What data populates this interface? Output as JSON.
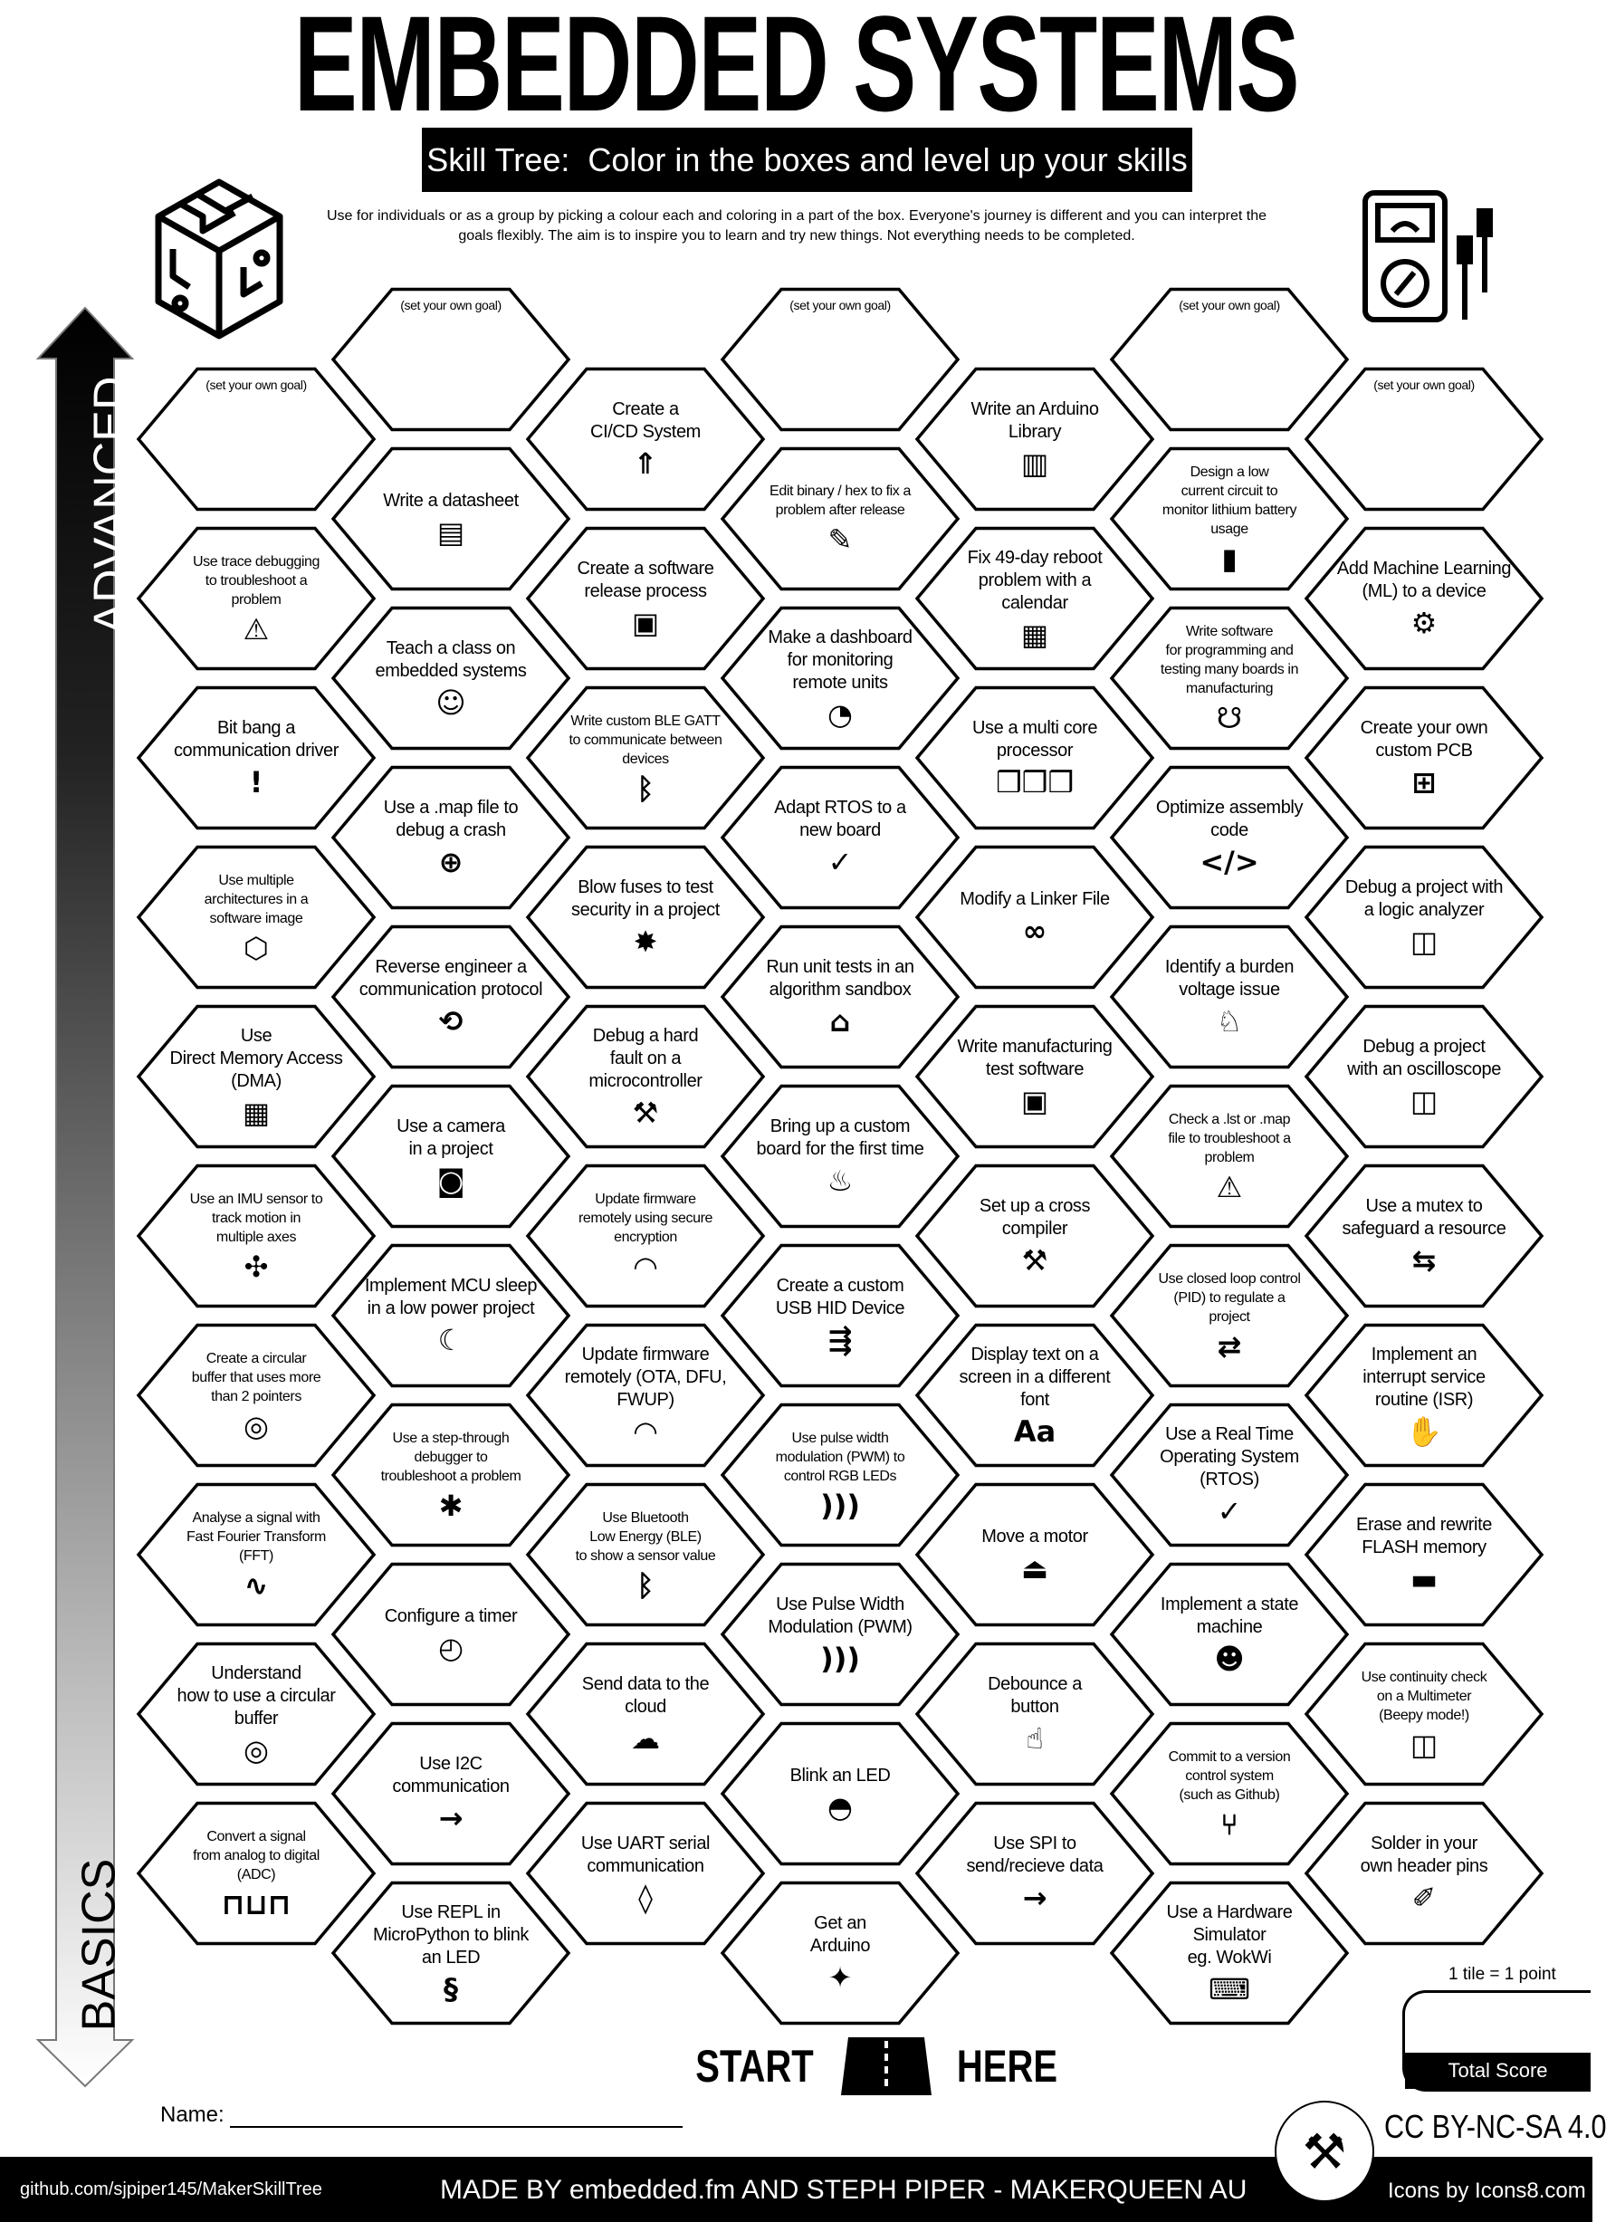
{
  "header": {
    "title": "EMBEDDED SYSTEMS",
    "subtitle": "Skill Tree:  Color in the boxes and level up your skills",
    "intro": "Use for individuals or as a group by picking a colour each and coloring in a part of the box.  Everyone's journey is different and you can interpret the goals flexibly.  The aim is to inspire you to learn and try new things. Not everything needs to be completed."
  },
  "axis": {
    "top_label": "ADVANCED",
    "bottom_label": "BASICS"
  },
  "tree": {
    "columns": [
      {
        "tiles": [
          {
            "label": "(set your own goal)",
            "goal": true
          },
          {
            "label": "Use trace debugging\nto troubleshoot a\nproblem",
            "icon": "monitor-alert-icon"
          },
          {
            "label": "Bit bang a\ncommunication driver",
            "icon": "exclamation-icon"
          },
          {
            "label": "Use multiple\narchitectures in a\nsoftware image",
            "icon": "cube-network-icon"
          },
          {
            "label": "Use\nDirect Memory Access\n(DMA)",
            "icon": "chip-icon"
          },
          {
            "label": "Use an IMU sensor to\ntrack motion in\nmultiple axes",
            "icon": "3d-axes-icon"
          },
          {
            "label": "Create a circular\nbuffer that uses more\nthan 2 pointers",
            "icon": "ring-buffer-icon"
          },
          {
            "label": "Analyse a signal with\nFast Fourier Transform\n(FFT)",
            "icon": "signal-search-icon"
          },
          {
            "label": "Understand\nhow to use a circular\nbuffer",
            "icon": "ring-buffer-icon"
          },
          {
            "label": "Convert a signal\nfrom analog to digital\n(ADC)",
            "icon": "square-wave-icon"
          }
        ]
      },
      {
        "tiles": [
          {
            "label": "(set your own goal)",
            "goal": true
          },
          {
            "label": "Write a datasheet",
            "icon": "document-icon"
          },
          {
            "label": "Teach a class on\nembedded systems",
            "icon": "teacher-icon"
          },
          {
            "label": "Use a .map file to\ndebug a crash",
            "icon": "globe-icon"
          },
          {
            "label": "Reverse engineer a\ncommunication protocol",
            "icon": "reverse-gear-icon"
          },
          {
            "label": "Use a camera\nin a project",
            "icon": "camera-icon"
          },
          {
            "label": "Implement MCU sleep\nin a low power project",
            "icon": "sleep-icon"
          },
          {
            "label": "Use a step-through\ndebugger to\ntroubleshoot a problem",
            "icon": "monitor-bug-icon"
          },
          {
            "label": "Configure a timer",
            "icon": "stopwatch-icon"
          },
          {
            "label": "Use I2C\ncommunication",
            "icon": "bus-arrow-icon"
          },
          {
            "label": "Use REPL in\nMicroPython to blink\nan LED",
            "icon": "python-icon"
          }
        ]
      },
      {
        "tiles": [
          {
            "label": "Create a\nCI/CD System",
            "icon": "rocket-box-icon"
          },
          {
            "label": "Create a software\nrelease process",
            "icon": "disc-box-icon"
          },
          {
            "label": "Write custom BLE GATT\nto communicate between\ndevices",
            "icon": "bluetooth-icon"
          },
          {
            "label": "Blow fuses to test\nsecurity in a project",
            "icon": "explosion-icon"
          },
          {
            "label": "Debug a hard\nfault on a\nmicrocontroller",
            "icon": "tools-icon"
          },
          {
            "label": "Update firmware\nremotely using secure\nencryption",
            "icon": "wifi-lock-icon"
          },
          {
            "label": "Update firmware\nremotely (OTA, DFU,\nFWUP)",
            "icon": "wifi-icon"
          },
          {
            "label": "Use Bluetooth\nLow Energy (BLE)\nto show a sensor value",
            "icon": "bluetooth-icon"
          },
          {
            "label": "Send data to the\ncloud",
            "icon": "cloud-icon"
          },
          {
            "label": "Use UART serial\ncommunication",
            "icon": "drop-icon"
          }
        ]
      },
      {
        "tiles": [
          {
            "label": "(set your own goal)",
            "goal": true
          },
          {
            "label": "Edit binary / hex to fix a\nproblem after release",
            "icon": "pencil-icon"
          },
          {
            "label": "Make a dashboard\nfor monitoring\nremote units",
            "icon": "gauge-icon"
          },
          {
            "label": "Adapt RTOS to a\nnew board",
            "icon": "monitor-check-icon"
          },
          {
            "label": "Run unit tests in an\nalgorithm sandbox",
            "icon": "sandbox-icon"
          },
          {
            "label": "Bring up a custom\nboard for the first time",
            "icon": "birthday-cake-icon"
          },
          {
            "label": "Create a custom\nUSB HID Device",
            "icon": "usb-icon"
          },
          {
            "label": "Use pulse width\nmodulation (PWM) to\ncontrol RGB LEDs",
            "icon": "signal-waves-icon"
          },
          {
            "label": "Use Pulse Width\nModulation (PWM)",
            "icon": "signal-waves-icon"
          },
          {
            "label": "Blink an LED",
            "icon": "led-icon"
          },
          {
            "label": "Get an\nArduino",
            "icon": "party-popper-icon"
          }
        ]
      },
      {
        "tiles": [
          {
            "label": "Write an Arduino\nLibrary",
            "icon": "books-icon"
          },
          {
            "label": "Fix 49-day reboot\nproblem with a\ncalendar",
            "icon": "calendar-icon"
          },
          {
            "label": "Use a multi core\nprocessor",
            "icon": "cubes-icon"
          },
          {
            "label": "Modify a Linker File",
            "icon": "link-icon"
          },
          {
            "label": "Write manufacturing\ntest software",
            "icon": "disc-box-icon"
          },
          {
            "label": "Set up a cross\ncompiler",
            "icon": "tools-icon"
          },
          {
            "label": "Display text on a\nscreen in a different\nfont",
            "icon": "font-icon"
          },
          {
            "label": "Move a motor",
            "icon": "joystick-icon"
          },
          {
            "label": "Debounce a\nbutton",
            "icon": "finger-press-icon"
          },
          {
            "label": "Use SPI to\nsend/recieve data",
            "icon": "bus-arrow-icon"
          }
        ]
      },
      {
        "tiles": [
          {
            "label": "(set your own goal)",
            "goal": true
          },
          {
            "label": "Design a low\ncurrent circuit to\nmonitor lithium battery\nusage",
            "icon": "battery-icon"
          },
          {
            "label": "Write software\nfor programming and\ntesting many boards in\nmanufacturing",
            "icon": "octopus-icon"
          },
          {
            "label": "Optimize assembly\ncode",
            "icon": "code-icon"
          },
          {
            "label": "Identify a burden\nvoltage issue",
            "icon": "donkey-icon"
          },
          {
            "label": "Check a .lst or .map\nfile to troubleshoot a\nproblem",
            "icon": "monitor-alert-icon"
          },
          {
            "label": "Use closed loop control\n(PID) to regulate a\nproject",
            "icon": "loop-arrows-icon"
          },
          {
            "label": "Use a Real Time\nOperating System\n(RTOS)",
            "icon": "monitor-check-icon"
          },
          {
            "label": "Implement a state\nmachine",
            "icon": "robot-icon"
          },
          {
            "label": "Commit to a version\ncontrol system\n(such as Github)",
            "icon": "git-branch-icon"
          },
          {
            "label": "Use a Hardware\nSimulator\neg. WokWi",
            "icon": "laptop-cube-icon"
          }
        ]
      },
      {
        "tiles": [
          {
            "label": "(set your own goal)",
            "goal": true
          },
          {
            "label": "Add Machine Learning\n(ML) to a device",
            "icon": "brain-gear-icon"
          },
          {
            "label": "Create your own\ncustom PCB",
            "icon": "pcb-icon"
          },
          {
            "label": "Debug a project with\na logic analyzer",
            "icon": "multimeter-icon"
          },
          {
            "label": "Debug a project\nwith an oscilloscope",
            "icon": "multimeter-icon"
          },
          {
            "label": "Use a mutex to\nsafeguard a resource",
            "icon": "handshake-icon"
          },
          {
            "label": "Implement an\ninterrupt service\nroutine (ISR)",
            "icon": "hand-icon"
          },
          {
            "label": "Erase and rewrite\nFLASH memory",
            "icon": "memory-chip-icon"
          },
          {
            "label": "Use continuity check\non a Multimeter\n(Beepy mode!)",
            "icon": "multimeter-icon"
          },
          {
            "label": "Solder in your\nown header pins",
            "icon": "soldering-iron-icon"
          }
        ]
      }
    ]
  },
  "start": {
    "left": "START",
    "right": "HERE"
  },
  "name_label": "Name:",
  "score": {
    "rule": "1 tile = 1 point",
    "label": "Total Score"
  },
  "license": "CC BY-NC-SA 4.0",
  "footer": {
    "github": "github.com/sjpiper145/MakerSkillTree",
    "made_by": "MADE BY embedded.fm AND STEPH PIPER  -  MAKERQUEEN AU",
    "icons_credit": "Icons by Icons8.com"
  },
  "colors": {
    "ink": "#000000",
    "paper": "#ffffff"
  }
}
